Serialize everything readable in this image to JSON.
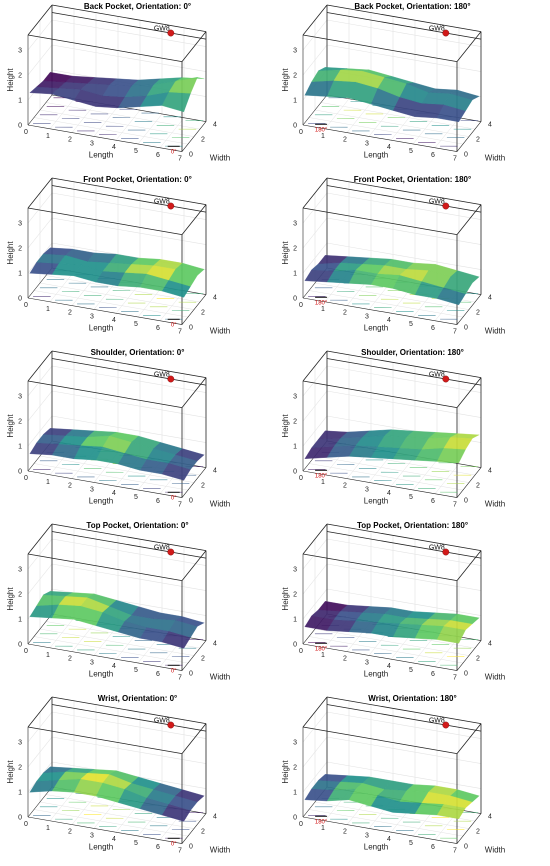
{
  "figure": {
    "axes": {
      "x_label": "Length",
      "y_label": "Width",
      "z_label": "Height",
      "x_ticks": [
        "0",
        "1",
        "2",
        "3",
        "4",
        "5",
        "6",
        "7"
      ],
      "y_ticks": [
        "0",
        "2",
        "4"
      ],
      "z_ticks": [
        "0",
        "1",
        "2",
        "3"
      ],
      "gateway_label": "GW8"
    },
    "colors": {
      "box": "#222222",
      "grid": "#e3e3e3",
      "gateway_marker": "#d11a1a",
      "colormap": [
        "#440154",
        "#3b528b",
        "#21918c",
        "#5ec962",
        "#fde725"
      ]
    }
  },
  "chart_data": [
    {
      "type": "surface",
      "title": "Back Pocket, Orientation: 0°",
      "orientation_label": "0°",
      "surface": [
        [
          1.2,
          1.3,
          1.2,
          1.1,
          1.2,
          1.4,
          1.6,
          1.5
        ],
        [
          1.1,
          1.2,
          1.3,
          1.2,
          1.3,
          1.5,
          1.8,
          1.9
        ],
        [
          1.0,
          1.1,
          1.2,
          1.3,
          1.4,
          1.6,
          1.9,
          2.2
        ],
        [
          1.0,
          1.0,
          1.1,
          1.2,
          1.3,
          1.5,
          1.7,
          1.8
        ]
      ],
      "xlim": [
        0,
        7
      ],
      "ylim": [
        0,
        4
      ],
      "zlim": [
        0,
        3.6
      ],
      "gateway": {
        "x": 5.4,
        "y": 4,
        "z": 3.3
      }
    },
    {
      "type": "surface",
      "title": "Back Pocket, Orientation: 180°",
      "orientation_label": "180°",
      "surface": [
        [
          1.1,
          1.2,
          1.3,
          1.2,
          1.1,
          1.0,
          1.1,
          1.1
        ],
        [
          1.3,
          1.5,
          1.6,
          1.5,
          1.3,
          1.2,
          1.3,
          1.2
        ],
        [
          1.4,
          1.6,
          1.7,
          1.6,
          1.5,
          1.3,
          1.4,
          1.3
        ],
        [
          1.2,
          1.3,
          1.4,
          1.3,
          1.2,
          1.1,
          1.2,
          1.1
        ]
      ],
      "xlim": [
        0,
        7
      ],
      "ylim": [
        0,
        4
      ],
      "zlim": [
        0,
        3.6
      ],
      "gateway": {
        "x": 5.4,
        "y": 4,
        "z": 3.3
      }
    },
    {
      "type": "surface",
      "title": "Front Pocket, Orientation: 0°",
      "orientation_label": "0°",
      "surface": [
        [
          0.9,
          1.0,
          1.1,
          1.0,
          1.0,
          1.1,
          1.1,
          1.0
        ],
        [
          1.0,
          1.1,
          1.2,
          1.1,
          1.2,
          1.3,
          1.2,
          1.1
        ],
        [
          1.0,
          1.1,
          1.0,
          1.1,
          1.2,
          1.3,
          1.3,
          1.2
        ],
        [
          0.9,
          1.0,
          1.0,
          1.1,
          1.1,
          1.2,
          1.2,
          1.1
        ]
      ],
      "xlim": [
        0,
        7
      ],
      "ylim": [
        0,
        4
      ],
      "zlim": [
        0,
        3.6
      ],
      "gateway": {
        "x": 5.4,
        "y": 4,
        "z": 3.3
      }
    },
    {
      "type": "surface",
      "title": "Front Pocket, Orientation: 180°",
      "orientation_label": "180°",
      "surface": [
        [
          0.6,
          0.7,
          0.8,
          0.9,
          0.9,
          0.8,
          0.8,
          0.7
        ],
        [
          0.7,
          0.8,
          1.0,
          1.0,
          1.1,
          1.0,
          0.9,
          0.8
        ],
        [
          0.6,
          0.8,
          0.9,
          1.0,
          1.0,
          1.1,
          1.0,
          0.9
        ],
        [
          0.6,
          0.7,
          0.8,
          0.9,
          0.9,
          1.0,
          0.9,
          0.8
        ]
      ],
      "xlim": [
        0,
        7
      ],
      "ylim": [
        0,
        4
      ],
      "zlim": [
        0,
        3.6
      ],
      "gateway": {
        "x": 5.4,
        "y": 4,
        "z": 3.3
      }
    },
    {
      "type": "surface",
      "title": "Shoulder, Orientation: 0°",
      "orientation_label": "0°",
      "surface": [
        [
          0.6,
          0.7,
          0.7,
          0.8,
          0.8,
          0.7,
          0.7,
          0.6
        ],
        [
          0.7,
          0.8,
          0.9,
          1.0,
          0.9,
          0.8,
          0.8,
          0.7
        ],
        [
          0.7,
          0.8,
          0.9,
          1.1,
          1.0,
          0.9,
          0.8,
          0.7
        ],
        [
          0.6,
          0.7,
          0.8,
          0.9,
          0.9,
          0.8,
          0.7,
          0.6
        ]
      ],
      "xlim": [
        0,
        7
      ],
      "ylim": [
        0,
        4
      ],
      "zlim": [
        0,
        3.6
      ],
      "gateway": {
        "x": 5.4,
        "y": 4,
        "z": 3.3
      }
    },
    {
      "type": "surface",
      "title": "Shoulder, Orientation: 180°",
      "orientation_label": "180°",
      "surface": [
        [
          0.4,
          0.6,
          0.8,
          0.9,
          1.0,
          1.1,
          1.2,
          1.3
        ],
        [
          0.5,
          0.7,
          0.9,
          1.0,
          1.1,
          1.2,
          1.4,
          1.5
        ],
        [
          0.5,
          0.7,
          0.9,
          1.1,
          1.2,
          1.3,
          1.5,
          1.6
        ],
        [
          0.5,
          0.6,
          0.8,
          1.0,
          1.1,
          1.2,
          1.3,
          1.4
        ]
      ],
      "xlim": [
        0,
        7
      ],
      "ylim": [
        0,
        4
      ],
      "zlim": [
        0,
        3.6
      ],
      "gateway": {
        "x": 5.4,
        "y": 4,
        "z": 3.3
      }
    },
    {
      "type": "surface",
      "title": "Top Pocket, Orientation: 0°",
      "orientation_label": "0°",
      "surface": [
        [
          1.0,
          1.1,
          1.2,
          1.1,
          1.0,
          0.9,
          0.9,
          0.8
        ],
        [
          1.1,
          1.3,
          1.4,
          1.3,
          1.1,
          1.0,
          1.0,
          0.9
        ],
        [
          1.2,
          1.3,
          1.4,
          1.2,
          1.0,
          1.0,
          1.1,
          1.0
        ],
        [
          1.0,
          1.1,
          1.2,
          1.1,
          1.0,
          0.9,
          0.9,
          0.8
        ]
      ],
      "xlim": [
        0,
        7
      ],
      "ylim": [
        0,
        4
      ],
      "zlim": [
        0,
        3.6
      ],
      "gateway": {
        "x": 5.4,
        "y": 4,
        "z": 3.3
      }
    },
    {
      "type": "surface",
      "title": "Top Pocket, Orientation: 180°",
      "orientation_label": "180°",
      "surface": [
        [
          0.6,
          0.6,
          0.7,
          0.8,
          0.8,
          0.9,
          1.0,
          1.0
        ],
        [
          0.7,
          0.7,
          0.8,
          0.9,
          1.0,
          1.1,
          1.2,
          1.2
        ],
        [
          0.6,
          0.7,
          0.8,
          0.9,
          0.9,
          1.0,
          1.1,
          1.1
        ],
        [
          0.6,
          0.6,
          0.7,
          0.8,
          0.8,
          0.9,
          1.0,
          1.0
        ]
      ],
      "xlim": [
        0,
        7
      ],
      "ylim": [
        0,
        4
      ],
      "zlim": [
        0,
        3.6
      ],
      "gateway": {
        "x": 5.4,
        "y": 4,
        "z": 3.3
      }
    },
    {
      "type": "surface",
      "title": "Wrist, Orientation: 0°",
      "orientation_label": "0°",
      "surface": [
        [
          0.9,
          1.1,
          1.2,
          1.2,
          1.1,
          1.0,
          0.9,
          0.8
        ],
        [
          1.0,
          1.2,
          1.4,
          1.4,
          1.3,
          1.1,
          1.0,
          0.9
        ],
        [
          1.0,
          1.2,
          1.3,
          1.4,
          1.2,
          1.1,
          1.0,
          0.9
        ],
        [
          0.9,
          1.0,
          1.1,
          1.2,
          1.1,
          1.0,
          0.9,
          0.8
        ]
      ],
      "xlim": [
        0,
        7
      ],
      "ylim": [
        0,
        4
      ],
      "zlim": [
        0,
        3.6
      ],
      "gateway": {
        "x": 5.4,
        "y": 4,
        "z": 3.3
      }
    },
    {
      "type": "surface",
      "title": "Wrist, Orientation: 180°",
      "orientation_label": "180°",
      "surface": [
        [
          0.6,
          0.7,
          0.9,
          0.8,
          0.7,
          0.8,
          0.9,
          0.9
        ],
        [
          0.7,
          0.8,
          1.0,
          0.9,
          0.8,
          0.9,
          1.0,
          1.0
        ],
        [
          0.7,
          0.8,
          0.9,
          0.8,
          0.9,
          1.0,
          1.0,
          0.9
        ],
        [
          0.6,
          0.7,
          0.8,
          0.8,
          0.8,
          0.9,
          0.9,
          0.8
        ]
      ],
      "xlim": [
        0,
        7
      ],
      "ylim": [
        0,
        4
      ],
      "zlim": [
        0,
        3.6
      ],
      "gateway": {
        "x": 5.4,
        "y": 4,
        "z": 3.3
      }
    }
  ]
}
